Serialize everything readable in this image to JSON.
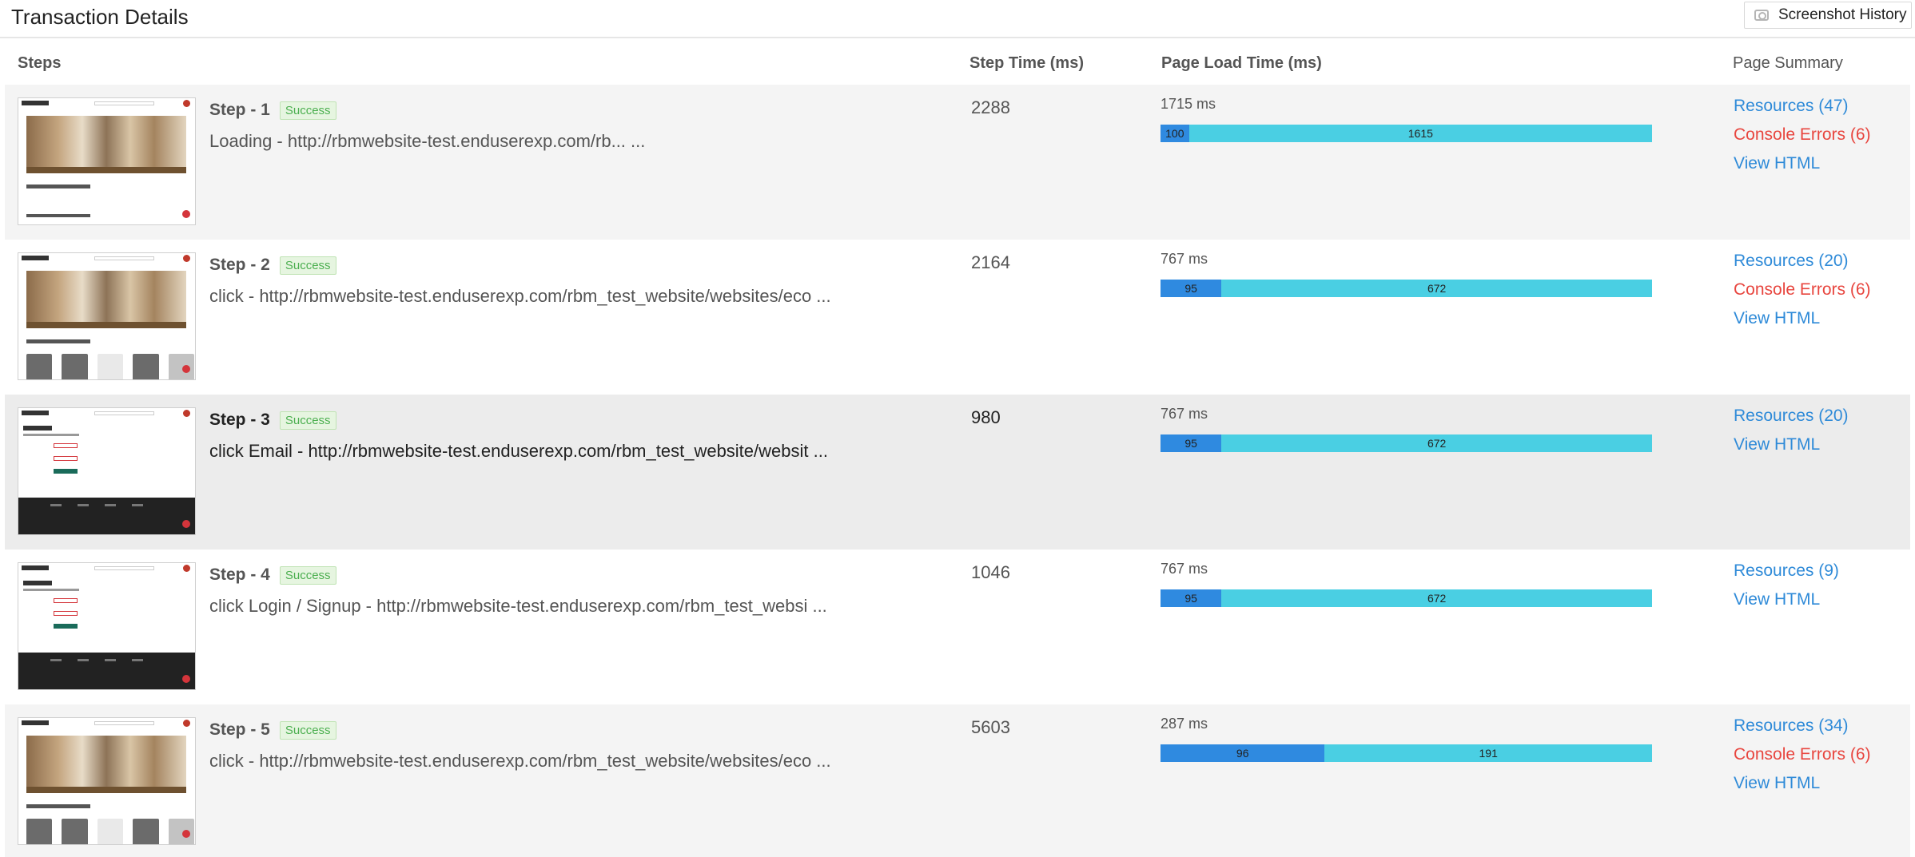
{
  "title": "Transaction Details",
  "screenshot_history_label": "Screenshot History",
  "columns": {
    "steps": "Steps",
    "step_time": "Step Time (ms)",
    "page_load_time": "Page Load Time (ms)",
    "page_summary": "Page Summary"
  },
  "steps": [
    {
      "title": "Step - 1",
      "status": "Success",
      "description": "Loading - http://rbmwebsite-test.enduserexp.com/rb... ...",
      "step_time": "2288",
      "page_load_label": "1715 ms",
      "bar": {
        "first": "100",
        "second": "1615",
        "first_fraction": 0.058
      },
      "resources": "Resources (47)",
      "console_errors": "Console Errors (6)",
      "view_html": "View HTML"
    },
    {
      "title": "Step - 2",
      "status": "Success",
      "description": "click - http://rbmwebsite-test.enduserexp.com/rbm_test_website/websites/eco ...",
      "step_time": "2164",
      "page_load_label": "767 ms",
      "bar": {
        "first": "95",
        "second": "672",
        "first_fraction": 0.124
      },
      "resources": "Resources (20)",
      "console_errors": "Console Errors (6)",
      "view_html": "View HTML"
    },
    {
      "title": "Step - 3",
      "status": "Success",
      "description": "click Email - http://rbmwebsite-test.enduserexp.com/rbm_test_website/websit ...",
      "step_time": "980",
      "page_load_label": "767 ms",
      "bar": {
        "first": "95",
        "second": "672",
        "first_fraction": 0.124
      },
      "resources": "Resources (20)",
      "view_html": "View HTML"
    },
    {
      "title": "Step - 4",
      "status": "Success",
      "description": "click Login / Signup - http://rbmwebsite-test.enduserexp.com/rbm_test_websi ...",
      "step_time": "1046",
      "page_load_label": "767 ms",
      "bar": {
        "first": "95",
        "second": "672",
        "first_fraction": 0.124
      },
      "resources": "Resources (9)",
      "view_html": "View HTML"
    },
    {
      "title": "Step - 5",
      "status": "Success",
      "description": "click - http://rbmwebsite-test.enduserexp.com/rbm_test_website/websites/eco ...",
      "step_time": "5603",
      "page_load_label": "287 ms",
      "bar": {
        "first": "96",
        "second": "191",
        "first_fraction": 0.334
      },
      "resources": "Resources (34)",
      "console_errors": "Console Errors (6)",
      "view_html": "View HTML"
    }
  ],
  "colors": {
    "bar_first": "#2f8ae0",
    "bar_second": "#4acfe3",
    "link": "#2e8ad8",
    "error_link": "#e8463f",
    "success": "#4caf50"
  }
}
